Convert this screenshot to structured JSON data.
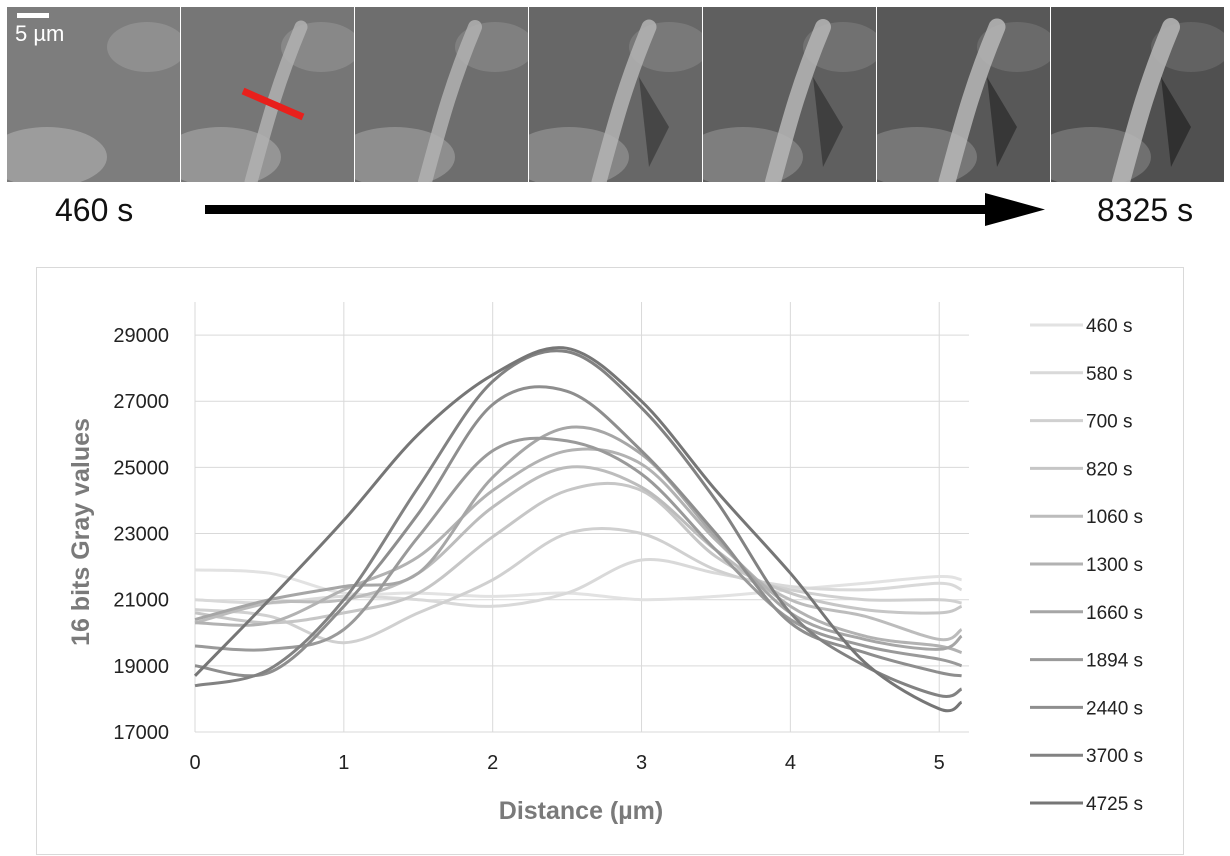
{
  "strip": {
    "scalebar_label": "5 µm",
    "start_label": "460 s",
    "end_label": "8325 s",
    "frame_count": 7
  },
  "chart_data": {
    "type": "line",
    "title": "",
    "xlabel": "Distance (µm)",
    "ylabel": "16 bits Gray values",
    "xlim": [
      0,
      5.2
    ],
    "ylim": [
      17000,
      30000
    ],
    "xticks": [
      "0",
      "1",
      "2",
      "3",
      "4",
      "5"
    ],
    "yticks": [
      "17000",
      "19000",
      "21000",
      "23000",
      "25000",
      "27000",
      "29000"
    ],
    "grid": true,
    "legend_position": "right",
    "x": [
      0,
      0.5,
      1,
      1.5,
      2,
      2.5,
      3,
      3.5,
      4,
      4.5,
      5,
      5.15
    ],
    "series": [
      {
        "name": "460 s",
        "color": "#e2e2e2",
        "values": [
          21900,
          21800,
          21200,
          21200,
          21100,
          21200,
          21000,
          21100,
          21300,
          21500,
          21700,
          21600
        ]
      },
      {
        "name": "580 s",
        "color": "#d9d9d9",
        "values": [
          21000,
          20900,
          21100,
          21000,
          20800,
          21200,
          22200,
          21800,
          21400,
          21300,
          21500,
          21300
        ]
      },
      {
        "name": "700 s",
        "color": "#d0d0d0",
        "values": [
          20700,
          20500,
          19700,
          20600,
          21600,
          23000,
          23000,
          21900,
          21300,
          21000,
          21000,
          20900
        ]
      },
      {
        "name": "820 s",
        "color": "#c6c6c6",
        "values": [
          20600,
          20300,
          20600,
          21200,
          22900,
          24300,
          24300,
          22300,
          21200,
          20700,
          20600,
          20800
        ]
      },
      {
        "name": "1060 s",
        "color": "#bcbcbc",
        "values": [
          20300,
          20900,
          21000,
          21800,
          23800,
          25000,
          24400,
          22500,
          21000,
          20500,
          19800,
          20100
        ]
      },
      {
        "name": "1300 s",
        "color": "#b2b2b2",
        "values": [
          20300,
          20300,
          21300,
          22300,
          24300,
          25500,
          25100,
          22800,
          20800,
          19900,
          19600,
          19400
        ]
      },
      {
        "name": "1660 s",
        "color": "#a6a6a6",
        "values": [
          20400,
          21000,
          21400,
          21800,
          24700,
          26200,
          25400,
          22900,
          20600,
          19800,
          19500,
          19900
        ]
      },
      {
        "name": "1894 s",
        "color": "#9a9a9a",
        "values": [
          19600,
          19500,
          20100,
          22900,
          25500,
          25800,
          24800,
          22500,
          20400,
          19600,
          19200,
          19000
        ]
      },
      {
        "name": "2440 s",
        "color": "#8e8e8e",
        "values": [
          19000,
          18800,
          20800,
          23600,
          26900,
          27300,
          25500,
          23000,
          20300,
          19400,
          18800,
          18700
        ]
      },
      {
        "name": "3700 s",
        "color": "#828282",
        "values": [
          18400,
          18900,
          21000,
          24400,
          27600,
          28500,
          26800,
          24000,
          20600,
          19000,
          18100,
          18300
        ]
      },
      {
        "name": "4725 s",
        "color": "#767676",
        "values": [
          18700,
          21000,
          23400,
          26000,
          27800,
          28600,
          27000,
          24300,
          21800,
          19100,
          17700,
          17900
        ]
      }
    ]
  }
}
